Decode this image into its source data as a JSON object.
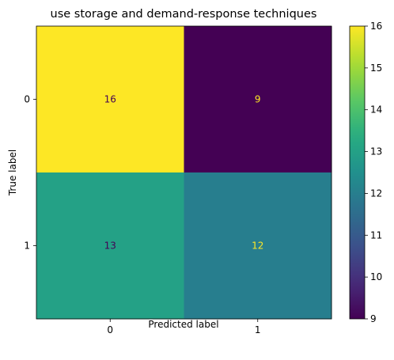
{
  "chart_data": {
    "type": "heatmap",
    "title": "use storage and demand-response techniques",
    "xlabel": "Predicted label",
    "ylabel": "True label",
    "x_categories": [
      "0",
      "1"
    ],
    "y_categories": [
      "0",
      "1"
    ],
    "values": [
      [
        16,
        9
      ],
      [
        13,
        12
      ]
    ],
    "colormap": "viridis",
    "colorbar": {
      "range": [
        9,
        16
      ],
      "ticks": [
        "9",
        "10",
        "11",
        "12",
        "13",
        "14",
        "15",
        "16"
      ]
    },
    "grid": false
  },
  "colors": {
    "low_text": "#fde725",
    "high_text": "#440154"
  }
}
